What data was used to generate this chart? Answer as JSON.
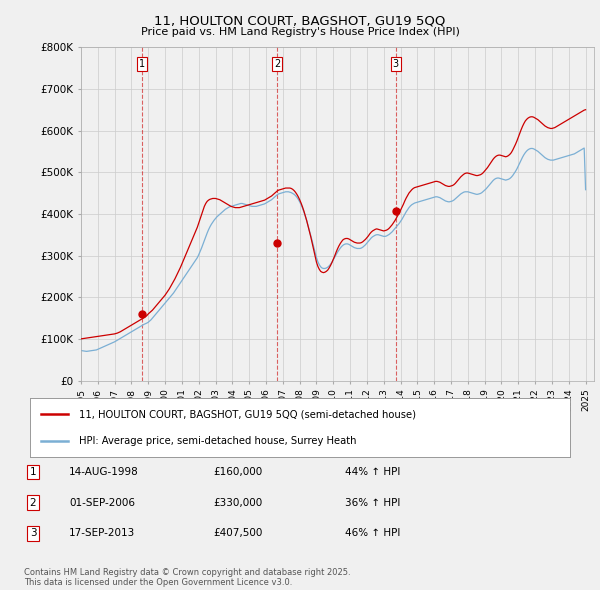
{
  "title": "11, HOULTON COURT, BAGSHOT, GU19 5QQ",
  "subtitle": "Price paid vs. HM Land Registry's House Price Index (HPI)",
  "legend_line1": "11, HOULTON COURT, BAGSHOT, GU19 5QQ (semi-detached house)",
  "legend_line2": "HPI: Average price, semi-detached house, Surrey Heath",
  "footer": "Contains HM Land Registry data © Crown copyright and database right 2025.\nThis data is licensed under the Open Government Licence v3.0.",
  "red_color": "#cc0000",
  "blue_color": "#7bafd4",
  "ylim": [
    0,
    800000
  ],
  "yticks": [
    0,
    100000,
    200000,
    300000,
    400000,
    500000,
    600000,
    700000,
    800000
  ],
  "ytick_labels": [
    "£0",
    "£100K",
    "£200K",
    "£300K",
    "£400K",
    "£500K",
    "£600K",
    "£700K",
    "£800K"
  ],
  "sales": [
    {
      "num": 1,
      "year": 1998.62,
      "price": 160000,
      "date": "14-AUG-1998",
      "label": "£160,000",
      "pct": "44%",
      "vline_x": 1998.62
    },
    {
      "num": 2,
      "year": 2006.67,
      "price": 330000,
      "date": "01-SEP-2006",
      "label": "£330,000",
      "pct": "36%",
      "vline_x": 2006.67
    },
    {
      "num": 3,
      "year": 2013.72,
      "price": 407500,
      "date": "17-SEP-2013",
      "label": "£407,500",
      "pct": "46%",
      "vline_x": 2013.72
    }
  ],
  "hpi_years": [
    1995.0,
    1995.083,
    1995.167,
    1995.25,
    1995.333,
    1995.417,
    1995.5,
    1995.583,
    1995.667,
    1995.75,
    1995.833,
    1995.917,
    1996.0,
    1996.083,
    1996.167,
    1996.25,
    1996.333,
    1996.417,
    1996.5,
    1996.583,
    1996.667,
    1996.75,
    1996.833,
    1996.917,
    1997.0,
    1997.083,
    1997.167,
    1997.25,
    1997.333,
    1997.417,
    1997.5,
    1997.583,
    1997.667,
    1997.75,
    1997.833,
    1997.917,
    1998.0,
    1998.083,
    1998.167,
    1998.25,
    1998.333,
    1998.417,
    1998.5,
    1998.583,
    1998.667,
    1998.75,
    1998.833,
    1998.917,
    1999.0,
    1999.083,
    1999.167,
    1999.25,
    1999.333,
    1999.417,
    1999.5,
    1999.583,
    1999.667,
    1999.75,
    1999.833,
    1999.917,
    2000.0,
    2000.083,
    2000.167,
    2000.25,
    2000.333,
    2000.417,
    2000.5,
    2000.583,
    2000.667,
    2000.75,
    2000.833,
    2000.917,
    2001.0,
    2001.083,
    2001.167,
    2001.25,
    2001.333,
    2001.417,
    2001.5,
    2001.583,
    2001.667,
    2001.75,
    2001.833,
    2001.917,
    2002.0,
    2002.083,
    2002.167,
    2002.25,
    2002.333,
    2002.417,
    2002.5,
    2002.583,
    2002.667,
    2002.75,
    2002.833,
    2002.917,
    2003.0,
    2003.083,
    2003.167,
    2003.25,
    2003.333,
    2003.417,
    2003.5,
    2003.583,
    2003.667,
    2003.75,
    2003.833,
    2003.917,
    2004.0,
    2004.083,
    2004.167,
    2004.25,
    2004.333,
    2004.417,
    2004.5,
    2004.583,
    2004.667,
    2004.75,
    2004.833,
    2004.917,
    2005.0,
    2005.083,
    2005.167,
    2005.25,
    2005.333,
    2005.417,
    2005.5,
    2005.583,
    2005.667,
    2005.75,
    2005.833,
    2005.917,
    2006.0,
    2006.083,
    2006.167,
    2006.25,
    2006.333,
    2006.417,
    2006.5,
    2006.583,
    2006.667,
    2006.75,
    2006.833,
    2006.917,
    2007.0,
    2007.083,
    2007.167,
    2007.25,
    2007.333,
    2007.417,
    2007.5,
    2007.583,
    2007.667,
    2007.75,
    2007.833,
    2007.917,
    2008.0,
    2008.083,
    2008.167,
    2008.25,
    2008.333,
    2008.417,
    2008.5,
    2008.583,
    2008.667,
    2008.75,
    2008.833,
    2008.917,
    2009.0,
    2009.083,
    2009.167,
    2009.25,
    2009.333,
    2009.417,
    2009.5,
    2009.583,
    2009.667,
    2009.75,
    2009.833,
    2009.917,
    2010.0,
    2010.083,
    2010.167,
    2010.25,
    2010.333,
    2010.417,
    2010.5,
    2010.583,
    2010.667,
    2010.75,
    2010.833,
    2010.917,
    2011.0,
    2011.083,
    2011.167,
    2011.25,
    2011.333,
    2011.417,
    2011.5,
    2011.583,
    2011.667,
    2011.75,
    2011.833,
    2011.917,
    2012.0,
    2012.083,
    2012.167,
    2012.25,
    2012.333,
    2012.417,
    2012.5,
    2012.583,
    2012.667,
    2012.75,
    2012.833,
    2012.917,
    2013.0,
    2013.083,
    2013.167,
    2013.25,
    2013.333,
    2013.417,
    2013.5,
    2013.583,
    2013.667,
    2013.75,
    2013.833,
    2013.917,
    2014.0,
    2014.083,
    2014.167,
    2014.25,
    2014.333,
    2014.417,
    2014.5,
    2014.583,
    2014.667,
    2014.75,
    2014.833,
    2014.917,
    2015.0,
    2015.083,
    2015.167,
    2015.25,
    2015.333,
    2015.417,
    2015.5,
    2015.583,
    2015.667,
    2015.75,
    2015.833,
    2015.917,
    2016.0,
    2016.083,
    2016.167,
    2016.25,
    2016.333,
    2016.417,
    2016.5,
    2016.583,
    2016.667,
    2016.75,
    2016.833,
    2016.917,
    2017.0,
    2017.083,
    2017.167,
    2017.25,
    2017.333,
    2017.417,
    2017.5,
    2017.583,
    2017.667,
    2017.75,
    2017.833,
    2017.917,
    2018.0,
    2018.083,
    2018.167,
    2018.25,
    2018.333,
    2018.417,
    2018.5,
    2018.583,
    2018.667,
    2018.75,
    2018.833,
    2018.917,
    2019.0,
    2019.083,
    2019.167,
    2019.25,
    2019.333,
    2019.417,
    2019.5,
    2019.583,
    2019.667,
    2019.75,
    2019.833,
    2019.917,
    2020.0,
    2020.083,
    2020.167,
    2020.25,
    2020.333,
    2020.417,
    2020.5,
    2020.583,
    2020.667,
    2020.75,
    2020.833,
    2020.917,
    2021.0,
    2021.083,
    2021.167,
    2021.25,
    2021.333,
    2021.417,
    2021.5,
    2021.583,
    2021.667,
    2021.75,
    2021.833,
    2021.917,
    2022.0,
    2022.083,
    2022.167,
    2022.25,
    2022.333,
    2022.417,
    2022.5,
    2022.583,
    2022.667,
    2022.75,
    2022.833,
    2022.917,
    2023.0,
    2023.083,
    2023.167,
    2023.25,
    2023.333,
    2023.417,
    2023.5,
    2023.583,
    2023.667,
    2023.75,
    2023.833,
    2023.917,
    2024.0,
    2024.083,
    2024.167,
    2024.25,
    2024.333,
    2024.417,
    2024.5,
    2024.583,
    2024.667,
    2024.75,
    2024.833,
    2024.917,
    2025.0
  ],
  "hpi_values": [
    72000,
    71500,
    71000,
    70500,
    70000,
    70500,
    71000,
    71500,
    72000,
    72500,
    73000,
    73500,
    75000,
    76500,
    78000,
    79500,
    81000,
    82500,
    84000,
    85500,
    87000,
    88500,
    90000,
    91500,
    93000,
    95000,
    97000,
    99000,
    101000,
    103000,
    105000,
    107000,
    109000,
    111000,
    113000,
    115000,
    117000,
    119000,
    121000,
    123000,
    125000,
    127000,
    129000,
    131000,
    133000,
    135000,
    136500,
    138000,
    140000,
    143000,
    146000,
    150000,
    154000,
    158000,
    162000,
    166000,
    170000,
    174000,
    178000,
    182000,
    186000,
    190000,
    194000,
    198000,
    202000,
    206000,
    210000,
    215000,
    220000,
    225000,
    230000,
    235000,
    240000,
    245000,
    250000,
    255000,
    260000,
    265000,
    270000,
    275000,
    280000,
    285000,
    290000,
    295000,
    302000,
    310000,
    318000,
    327000,
    336000,
    345000,
    354000,
    362000,
    369000,
    375000,
    380000,
    385000,
    389000,
    393000,
    396000,
    399000,
    402000,
    405000,
    408000,
    411000,
    413000,
    415000,
    417000,
    418000,
    419000,
    420000,
    421000,
    422000,
    423000,
    424000,
    425000,
    425000,
    424000,
    423000,
    422000,
    421000,
    420000,
    419000,
    418000,
    418000,
    418000,
    418000,
    419000,
    420000,
    421000,
    422000,
    423000,
    424000,
    426000,
    428000,
    430000,
    432000,
    434000,
    437000,
    440000,
    443000,
    446000,
    448000,
    449000,
    450000,
    451000,
    452000,
    453000,
    453000,
    453000,
    452000,
    451000,
    449000,
    447000,
    444000,
    440000,
    435000,
    429000,
    422000,
    414000,
    405000,
    395000,
    384000,
    372000,
    360000,
    347000,
    334000,
    321000,
    308000,
    295000,
    285000,
    278000,
    273000,
    270000,
    269000,
    269000,
    270000,
    272000,
    275000,
    279000,
    284000,
    290000,
    296000,
    302000,
    308000,
    313000,
    318000,
    322000,
    325000,
    327000,
    328000,
    328000,
    327000,
    325000,
    323000,
    321000,
    319000,
    318000,
    317000,
    317000,
    317000,
    318000,
    320000,
    323000,
    326000,
    330000,
    334000,
    338000,
    342000,
    345000,
    347000,
    349000,
    350000,
    350000,
    349000,
    348000,
    347000,
    346000,
    346000,
    347000,
    349000,
    351000,
    354000,
    357000,
    361000,
    365000,
    369000,
    373000,
    377000,
    382000,
    387000,
    393000,
    399000,
    405000,
    410000,
    415000,
    419000,
    422000,
    424000,
    426000,
    427000,
    428000,
    429000,
    430000,
    431000,
    432000,
    433000,
    434000,
    435000,
    436000,
    437000,
    438000,
    439000,
    440000,
    441000,
    441000,
    440000,
    439000,
    437000,
    435000,
    433000,
    431000,
    430000,
    429000,
    429000,
    430000,
    431000,
    433000,
    436000,
    439000,
    442000,
    445000,
    448000,
    450000,
    452000,
    453000,
    453000,
    453000,
    452000,
    451000,
    450000,
    449000,
    448000,
    447000,
    447000,
    448000,
    449000,
    451000,
    454000,
    457000,
    460000,
    464000,
    468000,
    472000,
    476000,
    480000,
    483000,
    485000,
    486000,
    486000,
    485000,
    484000,
    483000,
    482000,
    481000,
    482000,
    483000,
    485000,
    488000,
    492000,
    497000,
    502000,
    508000,
    515000,
    522000,
    529000,
    536000,
    542000,
    547000,
    551000,
    554000,
    556000,
    557000,
    557000,
    556000,
    554000,
    552000,
    550000,
    547000,
    544000,
    541000,
    538000,
    535000,
    533000,
    531000,
    530000,
    529000,
    529000,
    529000,
    530000,
    531000,
    532000,
    533000,
    534000,
    535000,
    536000,
    537000,
    538000,
    539000,
    540000,
    541000,
    542000,
    543000,
    544000,
    546000,
    548000,
    550000,
    552000,
    554000,
    556000,
    558000,
    458000
  ],
  "red_values": [
    100000,
    100500,
    101000,
    101500,
    102000,
    102500,
    103000,
    103500,
    104000,
    104500,
    105000,
    105500,
    106000,
    106500,
    107000,
    107500,
    108000,
    108500,
    109000,
    109500,
    110000,
    110500,
    111000,
    111500,
    112000,
    113000,
    114000,
    115500,
    117000,
    119000,
    121000,
    123000,
    125000,
    127000,
    129000,
    131000,
    133000,
    135000,
    137000,
    139000,
    141000,
    143000,
    145000,
    147000,
    149000,
    151000,
    153000,
    156000,
    160000,
    163000,
    166000,
    169000,
    173000,
    177000,
    181000,
    185000,
    189000,
    193000,
    197000,
    201000,
    205000,
    210000,
    215000,
    220000,
    226000,
    232000,
    238000,
    244000,
    251000,
    258000,
    265000,
    272000,
    280000,
    288000,
    296000,
    304000,
    312000,
    320000,
    328000,
    336000,
    344000,
    352000,
    360000,
    368000,
    378000,
    388000,
    398000,
    408000,
    418000,
    425000,
    430000,
    433000,
    435000,
    436000,
    437000,
    437000,
    437000,
    436000,
    435000,
    434000,
    432000,
    430000,
    428000,
    426000,
    424000,
    422000,
    420000,
    418000,
    417000,
    416000,
    415000,
    415000,
    415000,
    415000,
    416000,
    417000,
    418000,
    419000,
    420000,
    421000,
    422000,
    423000,
    424000,
    425000,
    426000,
    427000,
    428000,
    429000,
    430000,
    431000,
    432000,
    433000,
    435000,
    437000,
    439000,
    441000,
    443000,
    446000,
    449000,
    452000,
    455000,
    457000,
    458000,
    459000,
    460000,
    461000,
    462000,
    462000,
    462000,
    462000,
    461000,
    459000,
    456000,
    452000,
    447000,
    441000,
    434000,
    426000,
    417000,
    407000,
    396000,
    384000,
    371000,
    358000,
    344000,
    329000,
    314000,
    299000,
    284000,
    274000,
    267000,
    262000,
    260000,
    259000,
    260000,
    262000,
    265000,
    270000,
    276000,
    283000,
    291000,
    299000,
    308000,
    316000,
    323000,
    329000,
    334000,
    338000,
    340000,
    341000,
    341000,
    340000,
    338000,
    336000,
    334000,
    332000,
    331000,
    330000,
    330000,
    330000,
    331000,
    333000,
    336000,
    339000,
    343000,
    347000,
    352000,
    356000,
    359000,
    361000,
    363000,
    364000,
    363000,
    362000,
    361000,
    360000,
    359000,
    360000,
    361000,
    363000,
    366000,
    370000,
    374000,
    379000,
    384000,
    390000,
    396000,
    402000,
    409000,
    416000,
    423000,
    431000,
    438000,
    444000,
    450000,
    454000,
    458000,
    461000,
    463000,
    464000,
    465000,
    466000,
    467000,
    468000,
    469000,
    470000,
    471000,
    472000,
    473000,
    474000,
    475000,
    476000,
    477000,
    478000,
    478000,
    477000,
    476000,
    474000,
    472000,
    470000,
    468000,
    467000,
    466000,
    466000,
    467000,
    468000,
    470000,
    473000,
    477000,
    481000,
    485000,
    489000,
    492000,
    495000,
    497000,
    498000,
    498000,
    497000,
    496000,
    495000,
    494000,
    493000,
    492000,
    492000,
    493000,
    494000,
    496000,
    499000,
    503000,
    507000,
    511000,
    516000,
    521000,
    526000,
    531000,
    535000,
    538000,
    540000,
    541000,
    541000,
    540000,
    539000,
    538000,
    537000,
    538000,
    540000,
    543000,
    547000,
    553000,
    560000,
    567000,
    575000,
    584000,
    593000,
    602000,
    610000,
    617000,
    623000,
    627000,
    630000,
    632000,
    633000,
    633000,
    632000,
    630000,
    628000,
    626000,
    623000,
    620000,
    617000,
    614000,
    611000,
    609000,
    607000,
    606000,
    605000,
    605000,
    606000,
    607000,
    609000,
    611000,
    613000,
    615000,
    617000,
    619000,
    621000,
    623000,
    625000,
    627000,
    629000,
    631000,
    633000,
    635000,
    637000,
    639000,
    641000,
    643000,
    645000,
    647000,
    649000,
    650000
  ],
  "xtick_years": [
    1995,
    1996,
    1997,
    1998,
    1999,
    2000,
    2001,
    2002,
    2003,
    2004,
    2005,
    2006,
    2007,
    2008,
    2009,
    2010,
    2011,
    2012,
    2013,
    2014,
    2015,
    2016,
    2017,
    2018,
    2019,
    2020,
    2021,
    2022,
    2023,
    2024,
    2025
  ],
  "grid_color": "#cccccc",
  "bg_color": "#f0f0f0",
  "plot_bg": "#f0f0f0"
}
